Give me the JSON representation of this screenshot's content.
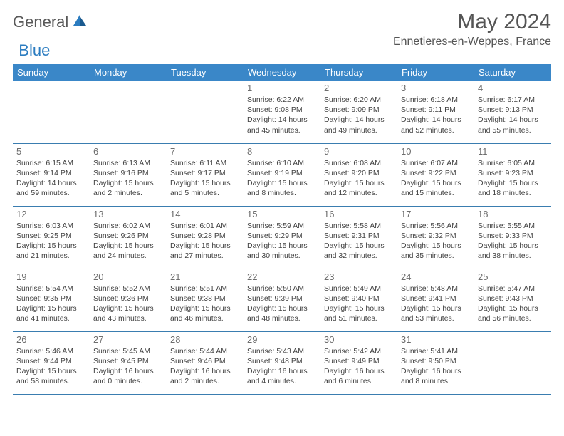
{
  "brand": {
    "part1": "General",
    "part2": "Blue"
  },
  "title": "May 2024",
  "location": "Ennetieres-en-Weppes, France",
  "colors": {
    "header_bg": "#3a87c8",
    "header_text": "#ffffff",
    "border": "#3a7db0",
    "daynum": "#6d6d6d",
    "body_text": "#424242",
    "brand_gray": "#585858",
    "brand_blue": "#2b7cc0",
    "title_color": "#555555"
  },
  "weekdays": [
    "Sunday",
    "Monday",
    "Tuesday",
    "Wednesday",
    "Thursday",
    "Friday",
    "Saturday"
  ],
  "weeks": [
    [
      null,
      null,
      null,
      {
        "d": "1",
        "sr": "Sunrise: 6:22 AM",
        "ss": "Sunset: 9:08 PM",
        "dl1": "Daylight: 14 hours",
        "dl2": "and 45 minutes."
      },
      {
        "d": "2",
        "sr": "Sunrise: 6:20 AM",
        "ss": "Sunset: 9:09 PM",
        "dl1": "Daylight: 14 hours",
        "dl2": "and 49 minutes."
      },
      {
        "d": "3",
        "sr": "Sunrise: 6:18 AM",
        "ss": "Sunset: 9:11 PM",
        "dl1": "Daylight: 14 hours",
        "dl2": "and 52 minutes."
      },
      {
        "d": "4",
        "sr": "Sunrise: 6:17 AM",
        "ss": "Sunset: 9:13 PM",
        "dl1": "Daylight: 14 hours",
        "dl2": "and 55 minutes."
      }
    ],
    [
      {
        "d": "5",
        "sr": "Sunrise: 6:15 AM",
        "ss": "Sunset: 9:14 PM",
        "dl1": "Daylight: 14 hours",
        "dl2": "and 59 minutes."
      },
      {
        "d": "6",
        "sr": "Sunrise: 6:13 AM",
        "ss": "Sunset: 9:16 PM",
        "dl1": "Daylight: 15 hours",
        "dl2": "and 2 minutes."
      },
      {
        "d": "7",
        "sr": "Sunrise: 6:11 AM",
        "ss": "Sunset: 9:17 PM",
        "dl1": "Daylight: 15 hours",
        "dl2": "and 5 minutes."
      },
      {
        "d": "8",
        "sr": "Sunrise: 6:10 AM",
        "ss": "Sunset: 9:19 PM",
        "dl1": "Daylight: 15 hours",
        "dl2": "and 8 minutes."
      },
      {
        "d": "9",
        "sr": "Sunrise: 6:08 AM",
        "ss": "Sunset: 9:20 PM",
        "dl1": "Daylight: 15 hours",
        "dl2": "and 12 minutes."
      },
      {
        "d": "10",
        "sr": "Sunrise: 6:07 AM",
        "ss": "Sunset: 9:22 PM",
        "dl1": "Daylight: 15 hours",
        "dl2": "and 15 minutes."
      },
      {
        "d": "11",
        "sr": "Sunrise: 6:05 AM",
        "ss": "Sunset: 9:23 PM",
        "dl1": "Daylight: 15 hours",
        "dl2": "and 18 minutes."
      }
    ],
    [
      {
        "d": "12",
        "sr": "Sunrise: 6:03 AM",
        "ss": "Sunset: 9:25 PM",
        "dl1": "Daylight: 15 hours",
        "dl2": "and 21 minutes."
      },
      {
        "d": "13",
        "sr": "Sunrise: 6:02 AM",
        "ss": "Sunset: 9:26 PM",
        "dl1": "Daylight: 15 hours",
        "dl2": "and 24 minutes."
      },
      {
        "d": "14",
        "sr": "Sunrise: 6:01 AM",
        "ss": "Sunset: 9:28 PM",
        "dl1": "Daylight: 15 hours",
        "dl2": "and 27 minutes."
      },
      {
        "d": "15",
        "sr": "Sunrise: 5:59 AM",
        "ss": "Sunset: 9:29 PM",
        "dl1": "Daylight: 15 hours",
        "dl2": "and 30 minutes."
      },
      {
        "d": "16",
        "sr": "Sunrise: 5:58 AM",
        "ss": "Sunset: 9:31 PM",
        "dl1": "Daylight: 15 hours",
        "dl2": "and 32 minutes."
      },
      {
        "d": "17",
        "sr": "Sunrise: 5:56 AM",
        "ss": "Sunset: 9:32 PM",
        "dl1": "Daylight: 15 hours",
        "dl2": "and 35 minutes."
      },
      {
        "d": "18",
        "sr": "Sunrise: 5:55 AM",
        "ss": "Sunset: 9:33 PM",
        "dl1": "Daylight: 15 hours",
        "dl2": "and 38 minutes."
      }
    ],
    [
      {
        "d": "19",
        "sr": "Sunrise: 5:54 AM",
        "ss": "Sunset: 9:35 PM",
        "dl1": "Daylight: 15 hours",
        "dl2": "and 41 minutes."
      },
      {
        "d": "20",
        "sr": "Sunrise: 5:52 AM",
        "ss": "Sunset: 9:36 PM",
        "dl1": "Daylight: 15 hours",
        "dl2": "and 43 minutes."
      },
      {
        "d": "21",
        "sr": "Sunrise: 5:51 AM",
        "ss": "Sunset: 9:38 PM",
        "dl1": "Daylight: 15 hours",
        "dl2": "and 46 minutes."
      },
      {
        "d": "22",
        "sr": "Sunrise: 5:50 AM",
        "ss": "Sunset: 9:39 PM",
        "dl1": "Daylight: 15 hours",
        "dl2": "and 48 minutes."
      },
      {
        "d": "23",
        "sr": "Sunrise: 5:49 AM",
        "ss": "Sunset: 9:40 PM",
        "dl1": "Daylight: 15 hours",
        "dl2": "and 51 minutes."
      },
      {
        "d": "24",
        "sr": "Sunrise: 5:48 AM",
        "ss": "Sunset: 9:41 PM",
        "dl1": "Daylight: 15 hours",
        "dl2": "and 53 minutes."
      },
      {
        "d": "25",
        "sr": "Sunrise: 5:47 AM",
        "ss": "Sunset: 9:43 PM",
        "dl1": "Daylight: 15 hours",
        "dl2": "and 56 minutes."
      }
    ],
    [
      {
        "d": "26",
        "sr": "Sunrise: 5:46 AM",
        "ss": "Sunset: 9:44 PM",
        "dl1": "Daylight: 15 hours",
        "dl2": "and 58 minutes."
      },
      {
        "d": "27",
        "sr": "Sunrise: 5:45 AM",
        "ss": "Sunset: 9:45 PM",
        "dl1": "Daylight: 16 hours",
        "dl2": "and 0 minutes."
      },
      {
        "d": "28",
        "sr": "Sunrise: 5:44 AM",
        "ss": "Sunset: 9:46 PM",
        "dl1": "Daylight: 16 hours",
        "dl2": "and 2 minutes."
      },
      {
        "d": "29",
        "sr": "Sunrise: 5:43 AM",
        "ss": "Sunset: 9:48 PM",
        "dl1": "Daylight: 16 hours",
        "dl2": "and 4 minutes."
      },
      {
        "d": "30",
        "sr": "Sunrise: 5:42 AM",
        "ss": "Sunset: 9:49 PM",
        "dl1": "Daylight: 16 hours",
        "dl2": "and 6 minutes."
      },
      {
        "d": "31",
        "sr": "Sunrise: 5:41 AM",
        "ss": "Sunset: 9:50 PM",
        "dl1": "Daylight: 16 hours",
        "dl2": "and 8 minutes."
      },
      null
    ]
  ]
}
